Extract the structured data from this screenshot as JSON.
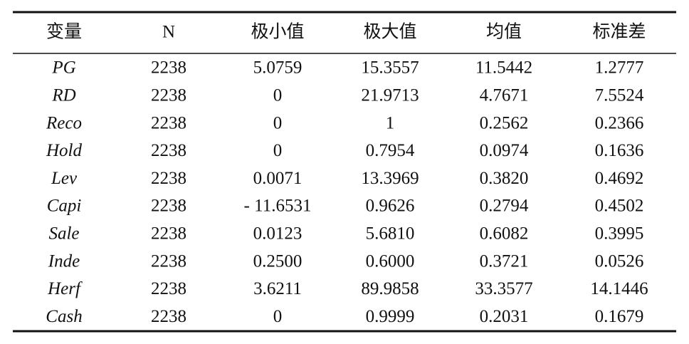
{
  "table": {
    "header": [
      "变量",
      "N",
      "极小值",
      "极大值",
      "均值",
      "标准差"
    ],
    "rows": [
      [
        "PG",
        "2238",
        "5.0759",
        "15.3557",
        "11.5442",
        "1.2777"
      ],
      [
        "RD",
        "2238",
        "0",
        "21.9713",
        "4.7671",
        "7.5524"
      ],
      [
        "Reco",
        "2238",
        "0",
        "1",
        "0.2562",
        "0.2366"
      ],
      [
        "Hold",
        "2238",
        "0",
        "0.7954",
        "0.0974",
        "0.1636"
      ],
      [
        "Lev",
        "2238",
        "0.0071",
        "13.3969",
        "0.3820",
        "0.4692"
      ],
      [
        "Capi",
        "2238",
        "- 11.6531",
        "0.9626",
        "0.2794",
        "0.4502"
      ],
      [
        "Sale",
        "2238",
        "0.0123",
        "5.6810",
        "0.6082",
        "0.3995"
      ],
      [
        "Inde",
        "2238",
        "0.2500",
        "0.6000",
        "0.3721",
        "0.0526"
      ],
      [
        "Herf",
        "2238",
        "3.6211",
        "89.9858",
        "33.3577",
        "14.1446"
      ],
      [
        "Cash",
        "2238",
        "0",
        "0.9999",
        "0.2031",
        "0.1679"
      ]
    ]
  }
}
